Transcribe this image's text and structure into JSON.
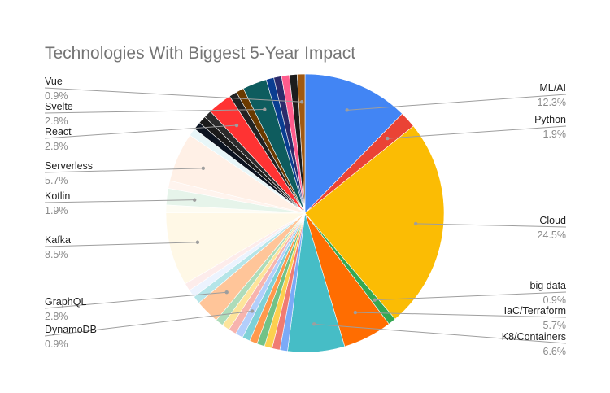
{
  "chart_data": {
    "type": "pie",
    "title": "Technologies With Biggest 5-Year Impact",
    "legend": "none",
    "slices": [
      {
        "label": "ML/AI",
        "pct_label": "12.3%",
        "value": 12.3,
        "color": "#4285f4"
      },
      {
        "label": "Python",
        "pct_label": "1.9%",
        "value": 1.9,
        "color": "#ea4335"
      },
      {
        "label": "Cloud",
        "pct_label": "24.5%",
        "value": 24.5,
        "color": "#fbbc04"
      },
      {
        "label": "big data",
        "pct_label": "0.9%",
        "value": 0.9,
        "color": "#34a853"
      },
      {
        "label": "IaC/Terraform",
        "pct_label": "5.7%",
        "value": 5.7,
        "color": "#ff6d01"
      },
      {
        "label": "K8/Containers",
        "pct_label": "6.6%",
        "value": 6.6,
        "color": "#46bdc6"
      },
      {
        "label": "",
        "pct_label": "",
        "value": 0.9,
        "color": "#7baaf7"
      },
      {
        "label": "",
        "pct_label": "",
        "value": 0.9,
        "color": "#f07b72"
      },
      {
        "label": "",
        "pct_label": "",
        "value": 0.9,
        "color": "#fcd04f"
      },
      {
        "label": "",
        "pct_label": "",
        "value": 0.9,
        "color": "#71c287"
      },
      {
        "label": "",
        "pct_label": "",
        "value": 0.9,
        "color": "#ff994d"
      },
      {
        "label": "",
        "pct_label": "",
        "value": 0.9,
        "color": "#7ed1d7"
      },
      {
        "label": "DynamoDB",
        "pct_label": "0.9%",
        "value": 0.9,
        "color": "#b3cefb"
      },
      {
        "label": "",
        "pct_label": "",
        "value": 0.9,
        "color": "#f7b4ae"
      },
      {
        "label": "",
        "pct_label": "",
        "value": 0.9,
        "color": "#fde49b"
      },
      {
        "label": "",
        "pct_label": "",
        "value": 0.9,
        "color": "#aedcba"
      },
      {
        "label": "GraphQL",
        "pct_label": "2.8%",
        "value": 2.8,
        "color": "#ffc599"
      },
      {
        "label": "",
        "pct_label": "",
        "value": 0.9,
        "color": "#b5e5e8"
      },
      {
        "label": "",
        "pct_label": "",
        "value": 0.9,
        "color": "#ecf3fe"
      },
      {
        "label": "",
        "pct_label": "",
        "value": 0.9,
        "color": "#fdeceb"
      },
      {
        "label": "Kafka",
        "pct_label": "8.5%",
        "value": 8.5,
        "color": "#fff8e6"
      },
      {
        "label": "",
        "pct_label": "",
        "value": 0.9,
        "color": "#fefcf3"
      },
      {
        "label": "Kotlin",
        "pct_label": "1.9%",
        "value": 1.9,
        "color": "#e6f4ea"
      },
      {
        "label": "",
        "pct_label": "",
        "value": 0.9,
        "color": "#fff4ee"
      },
      {
        "label": "Serverless",
        "pct_label": "5.7%",
        "value": 5.7,
        "color": "#fff0e6"
      },
      {
        "label": "",
        "pct_label": "",
        "value": 0.9,
        "color": "#e8f6f8"
      },
      {
        "label": "",
        "pct_label": "",
        "value": 0.9,
        "color": "#0b1320"
      },
      {
        "label": "",
        "pct_label": "",
        "value": 0.9,
        "color": "#1a1a1a"
      },
      {
        "label": "",
        "pct_label": "",
        "value": 0.9,
        "color": "#2b2b2b"
      },
      {
        "label": "React",
        "pct_label": "2.8%",
        "value": 2.8,
        "color": "#ff3333"
      },
      {
        "label": "",
        "pct_label": "",
        "value": 0.9,
        "color": "#222222"
      },
      {
        "label": "",
        "pct_label": "",
        "value": 0.9,
        "color": "#6b3a00"
      },
      {
        "label": "Svelte",
        "pct_label": "2.8%",
        "value": 2.8,
        "color": "#0e5c5e"
      },
      {
        "label": "",
        "pct_label": "",
        "value": 0.9,
        "color": "#0a3d91"
      },
      {
        "label": "",
        "pct_label": "",
        "value": 0.9,
        "color": "#2b2b6b"
      },
      {
        "label": "",
        "pct_label": "",
        "value": 0.9,
        "color": "#ff5c8d"
      },
      {
        "label": "",
        "pct_label": "",
        "value": 0.9,
        "color": "#1c1c1c"
      },
      {
        "label": "Vue",
        "pct_label": "0.9%",
        "value": 0.9,
        "color": "#a05a12"
      }
    ]
  }
}
